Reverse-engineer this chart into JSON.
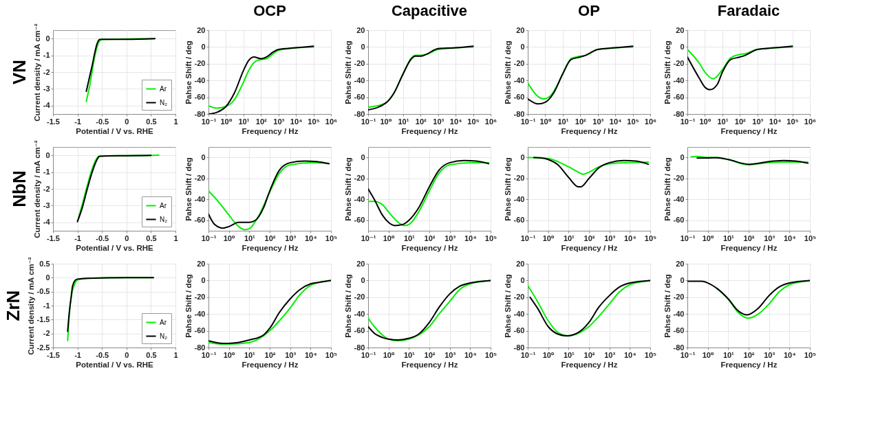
{
  "chart_data": [
    {
      "type": "line",
      "title": "VN",
      "xlabel": "Potential / V vs. RHE",
      "ylabel": "Current density / mA cm⁻²",
      "xlim": [
        -1.5,
        1
      ],
      "xticks": [
        -1.5,
        -1,
        -0.5,
        0,
        0.5,
        1
      ],
      "ylim": [
        -4.5,
        0.5
      ],
      "yticks": [
        -4,
        -3,
        -2,
        -1,
        0
      ],
      "grid": true,
      "legend": "bottom right",
      "series": [
        {
          "name": "Ar",
          "color": "#00ee00",
          "x": [
            -0.82,
            -0.75,
            -0.65,
            -0.6,
            -0.55,
            -0.5,
            0.58
          ],
          "values": [
            -3.75,
            -2.8,
            -1.1,
            -0.5,
            -0.15,
            -0.05,
            0
          ]
        },
        {
          "name": "N₂",
          "color": "#000000",
          "x": [
            -0.82,
            -0.7,
            -0.6,
            -0.55,
            -0.5,
            0,
            0.58
          ],
          "values": [
            -3.15,
            -1.6,
            -0.3,
            -0.05,
            -0.04,
            -0.04,
            0
          ]
        }
      ]
    },
    {
      "type": "line",
      "title": "OCP",
      "xlabel": "Frequency / Hz",
      "ylabel": "Pahse Shift / deg",
      "log": "x",
      "xlim": [
        0.1,
        1000000
      ],
      "xticks": [
        {
          "value": 0.1,
          "label": "10⁻¹"
        },
        {
          "value": 1,
          "label": "10⁰"
        },
        {
          "value": 10,
          "label": "10¹"
        },
        {
          "value": 100,
          "label": "10²"
        },
        {
          "value": 1000,
          "label": "10³"
        },
        {
          "value": 10000,
          "label": "10⁴"
        },
        {
          "value": 100000,
          "label": "10⁵"
        },
        {
          "value": 1000000,
          "label": "10⁶"
        }
      ],
      "ylim": [
        -80,
        20
      ],
      "yticks": [
        -80,
        -60,
        -40,
        -20,
        0,
        20
      ],
      "grid": true,
      "series": [
        {
          "color": "#00ee00",
          "x": [
            0.1,
            0.3,
            1,
            3,
            10,
            20,
            50,
            100,
            200,
            500,
            1000,
            10000,
            100000
          ],
          "values": [
            -70,
            -73,
            -71,
            -63,
            -42,
            -28,
            -17,
            -15,
            -14,
            -8,
            -4,
            -1,
            0
          ]
        },
        {
          "color": "#000000",
          "x": [
            0.1,
            0.3,
            1,
            3,
            10,
            20,
            40,
            100,
            200,
            500,
            1000,
            10000,
            100000
          ],
          "values": [
            -80,
            -78,
            -71,
            -55,
            -28,
            -16,
            -12,
            -14,
            -12,
            -6,
            -3,
            -1,
            1
          ]
        }
      ]
    },
    {
      "type": "line",
      "title": "Capacitive",
      "xlabel": "Frequency / Hz",
      "ylabel": "Pahse Shift / deg",
      "log": "x",
      "xlim": [
        0.1,
        1000000
      ],
      "xticks": [
        {
          "value": 0.1,
          "label": "10⁻¹"
        },
        {
          "value": 1,
          "label": "10⁰"
        },
        {
          "value": 10,
          "label": "10¹"
        },
        {
          "value": 100,
          "label": "10²"
        },
        {
          "value": 1000,
          "label": "10³"
        },
        {
          "value": 10000,
          "label": "10⁴"
        },
        {
          "value": 100000,
          "label": "10⁵"
        },
        {
          "value": 1000000,
          "label": "10⁶"
        }
      ],
      "ylim": [
        -80,
        20
      ],
      "yticks": [
        -80,
        -60,
        -40,
        -20,
        0,
        20
      ],
      "grid": true,
      "series": [
        {
          "color": "#00ee00",
          "x": [
            0.1,
            1,
            3,
            10,
            30,
            50,
            100,
            200,
            1000,
            10000,
            100000
          ],
          "values": [
            -72,
            -67,
            -55,
            -32,
            -13,
            -10,
            -10,
            -9,
            -3,
            -1,
            0
          ]
        },
        {
          "color": "#000000",
          "x": [
            0.1,
            1,
            3,
            10,
            30,
            50,
            100,
            200,
            1000,
            10000,
            100000
          ],
          "values": [
            -75,
            -67,
            -55,
            -32,
            -14,
            -11,
            -11,
            -9,
            -2,
            -1,
            1
          ]
        }
      ]
    },
    {
      "type": "line",
      "title": "OP",
      "xlabel": "Frequency / Hz",
      "ylabel": "Pahse Shift / deg",
      "log": "x",
      "xlim": [
        0.1,
        1000000
      ],
      "xticks": [
        {
          "value": 0.1,
          "label": "10⁻¹"
        },
        {
          "value": 1,
          "label": "10⁰"
        },
        {
          "value": 10,
          "label": "10¹"
        },
        {
          "value": 100,
          "label": "10²"
        },
        {
          "value": 1000,
          "label": "10³"
        },
        {
          "value": 10000,
          "label": "10⁴"
        },
        {
          "value": 100000,
          "label": "10⁵"
        },
        {
          "value": 1000000,
          "label": "10⁶"
        }
      ],
      "ylim": [
        -80,
        20
      ],
      "yticks": [
        -80,
        -60,
        -40,
        -20,
        0,
        20
      ],
      "grid": true,
      "series": [
        {
          "color": "#00ee00",
          "x": [
            0.1,
            0.3,
            0.8,
            2,
            5,
            10,
            30,
            100,
            200,
            1000,
            10000,
            100000
          ],
          "values": [
            -43,
            -57,
            -62,
            -58,
            -45,
            -32,
            -14,
            -11,
            -10,
            -3,
            -1,
            0
          ]
        },
        {
          "color": "#000000",
          "x": [
            0.1,
            0.4,
            1,
            3,
            10,
            30,
            100,
            200,
            1000,
            10000,
            100000
          ],
          "values": [
            -62,
            -68,
            -66,
            -55,
            -32,
            -15,
            -12,
            -10,
            -3,
            -1,
            1
          ]
        }
      ]
    },
    {
      "type": "line",
      "title": "Faradaic",
      "xlabel": "Frequency / Hz",
      "ylabel": "Pahse Shift / deg",
      "log": "x",
      "xlim": [
        0.1,
        1000000
      ],
      "xticks": [
        {
          "value": 0.1,
          "label": "10⁻¹"
        },
        {
          "value": 1,
          "label": "10⁰"
        },
        {
          "value": 10,
          "label": "10¹"
        },
        {
          "value": 100,
          "label": "10²"
        },
        {
          "value": 1000,
          "label": "10³"
        },
        {
          "value": 10000,
          "label": "10⁴"
        },
        {
          "value": 100000,
          "label": "10⁵"
        },
        {
          "value": 1000000,
          "label": "10⁶"
        }
      ],
      "ylim": [
        -80,
        20
      ],
      "yticks": [
        -80,
        -60,
        -40,
        -20,
        0,
        20
      ],
      "grid": true,
      "series": [
        {
          "color": "#00ee00",
          "x": [
            0.1,
            0.5,
            1,
            3,
            10,
            30,
            100,
            200,
            1000,
            10000,
            100000
          ],
          "values": [
            -3,
            -20,
            -30,
            -38,
            -27,
            -13,
            -9,
            -8,
            -3,
            -1,
            0
          ]
        },
        {
          "color": "#000000",
          "x": [
            0.1,
            0.5,
            1,
            2,
            5,
            10,
            30,
            100,
            200,
            1000,
            10000,
            100000
          ],
          "values": [
            -12,
            -38,
            -48,
            -51,
            -45,
            -30,
            -15,
            -12,
            -10,
            -3,
            -1,
            1
          ]
        }
      ]
    },
    {
      "type": "line",
      "title": "NbN",
      "xlabel": "Potential / V vs. RHE",
      "ylabel": "Current density / mA cm⁻²",
      "xlim": [
        -1.5,
        1
      ],
      "xticks": [
        -1.5,
        -1,
        -0.5,
        0,
        0.5,
        1
      ],
      "ylim": [
        -4.5,
        0.5
      ],
      "yticks": [
        -4,
        -3,
        -2,
        -1,
        0
      ],
      "grid": true,
      "legend": "bottom right",
      "series": [
        {
          "name": "Ar",
          "color": "#00ee00",
          "x": [
            -1,
            -0.9,
            -0.8,
            -0.7,
            -0.6,
            -0.55,
            0,
            0.5,
            0.66
          ],
          "values": [
            -3.95,
            -2.9,
            -1.8,
            -0.8,
            -0.15,
            -0.05,
            -0.02,
            0,
            0.02
          ]
        },
        {
          "name": "N₂",
          "color": "#000000",
          "x": [
            -1,
            -0.9,
            -0.8,
            -0.7,
            -0.6,
            -0.55,
            0,
            0.5
          ],
          "values": [
            -3.95,
            -3.1,
            -2,
            -1,
            -0.25,
            -0.05,
            -0.02,
            0
          ]
        }
      ]
    },
    {
      "type": "line",
      "xlabel": "Frequency / Hz",
      "ylabel": "Pahse Shift / deg",
      "log": "x",
      "xlim": [
        0.1,
        100000
      ],
      "xticks": [
        {
          "value": 0.1,
          "label": "10⁻¹"
        },
        {
          "value": 1,
          "label": "10⁰"
        },
        {
          "value": 10,
          "label": "10¹"
        },
        {
          "value": 100,
          "label": "10²"
        },
        {
          "value": 1000,
          "label": "10³"
        },
        {
          "value": 10000,
          "label": "10⁴"
        },
        {
          "value": 100000,
          "label": "10⁵"
        }
      ],
      "ylim": [
        -70,
        10
      ],
      "yticks": [
        -60,
        -40,
        -20,
        0
      ],
      "grid": true,
      "series": [
        {
          "color": "#00ee00",
          "x": [
            0.1,
            0.3,
            1,
            3,
            6,
            10,
            30,
            100,
            300,
            1000,
            10000,
            80000
          ],
          "values": [
            -32,
            -42,
            -55,
            -66,
            -69,
            -68,
            -55,
            -33,
            -15,
            -7,
            -5,
            -5.5
          ]
        },
        {
          "color": "#000000",
          "x": [
            0.1,
            0.2,
            0.5,
            1,
            3,
            10,
            20,
            50,
            100,
            300,
            1000,
            5000,
            20000,
            80000
          ],
          "values": [
            -54,
            -64,
            -67.5,
            -66,
            -62,
            -62,
            -60,
            -48,
            -32,
            -12,
            -5,
            -3.5,
            -4,
            -6
          ]
        }
      ]
    },
    {
      "type": "line",
      "xlabel": "Frequency / Hz",
      "ylabel": "Pahse Shift / deg",
      "log": "x",
      "xlim": [
        0.1,
        100000
      ],
      "xticks": [
        {
          "value": 0.1,
          "label": "10⁻¹"
        },
        {
          "value": 1,
          "label": "10⁰"
        },
        {
          "value": 10,
          "label": "10¹"
        },
        {
          "value": 100,
          "label": "10²"
        },
        {
          "value": 1000,
          "label": "10³"
        },
        {
          "value": 10000,
          "label": "10⁴"
        },
        {
          "value": 100000,
          "label": "10⁵"
        }
      ],
      "ylim": [
        -70,
        10
      ],
      "yticks": [
        -60,
        -40,
        -20,
        0
      ],
      "grid": true,
      "series": [
        {
          "color": "#00ee00",
          "x": [
            0.1,
            0.2,
            0.5,
            1,
            3,
            6,
            10,
            30,
            100,
            300,
            1000,
            10000,
            80000
          ],
          "values": [
            -42,
            -42,
            -45,
            -52,
            -62,
            -65,
            -64,
            -52,
            -32,
            -15,
            -7,
            -5,
            -5
          ]
        },
        {
          "color": "#000000",
          "x": [
            0.1,
            0.2,
            0.5,
            1,
            2,
            5,
            10,
            30,
            100,
            300,
            1000,
            5000,
            20000,
            80000
          ],
          "values": [
            -30,
            -40,
            -55,
            -62,
            -65,
            -64,
            -60,
            -48,
            -28,
            -12,
            -5,
            -3,
            -3.5,
            -6
          ]
        }
      ]
    },
    {
      "type": "line",
      "xlabel": "Frequency / Hz",
      "ylabel": "Pahse Shift / deg",
      "log": "x",
      "xlim": [
        0.1,
        100000
      ],
      "xticks": [
        {
          "value": 0.1,
          "label": "10⁻¹"
        },
        {
          "value": 1,
          "label": "10⁰"
        },
        {
          "value": 10,
          "label": "10¹"
        },
        {
          "value": 100,
          "label": "10²"
        },
        {
          "value": 1000,
          "label": "10³"
        },
        {
          "value": 10000,
          "label": "10⁴"
        },
        {
          "value": 100000,
          "label": "10⁵"
        }
      ],
      "ylim": [
        -70,
        10
      ],
      "yticks": [
        -60,
        -40,
        -20,
        0
      ],
      "grid": true,
      "series": [
        {
          "color": "#00ee00",
          "x": [
            0.1,
            0.3,
            1,
            3,
            10,
            30,
            50,
            100,
            300,
            1000,
            10000,
            80000
          ],
          "values": [
            0,
            -0.5,
            -1,
            -4,
            -9,
            -14,
            -16,
            -14,
            -9,
            -6,
            -5,
            -4.5
          ]
        },
        {
          "color": "#000000",
          "x": [
            0.2,
            0.5,
            1,
            3,
            10,
            30,
            40,
            100,
            300,
            1000,
            5000,
            20000,
            80000
          ],
          "values": [
            0,
            -0.5,
            -2,
            -7,
            -19,
            -28,
            -28,
            -20,
            -10,
            -5,
            -3,
            -3.5,
            -6.5
          ]
        }
      ]
    },
    {
      "type": "line",
      "xlabel": "Frequency / Hz",
      "ylabel": "Pahse Shift / deg",
      "log": "x",
      "xlim": [
        0.1,
        100000
      ],
      "xticks": [
        {
          "value": 0.1,
          "label": "10⁻¹"
        },
        {
          "value": 1,
          "label": "10⁰"
        },
        {
          "value": 10,
          "label": "10¹"
        },
        {
          "value": 100,
          "label": "10²"
        },
        {
          "value": 1000,
          "label": "10³"
        },
        {
          "value": 10000,
          "label": "10⁴"
        },
        {
          "value": 100000,
          "label": "10⁵"
        }
      ],
      "ylim": [
        -70,
        10
      ],
      "yticks": [
        -60,
        -40,
        -20,
        0
      ],
      "grid": true,
      "series": [
        {
          "color": "#00ee00",
          "x": [
            0.15,
            0.3,
            1,
            3,
            10,
            100,
            300,
            1000,
            10000,
            80000
          ],
          "values": [
            0.5,
            1,
            0,
            0,
            -2,
            -7,
            -6,
            -5,
            -4.5,
            -4.5
          ]
        },
        {
          "color": "#000000",
          "x": [
            0.3,
            1,
            3,
            10,
            100,
            300,
            1000,
            5000,
            20000,
            80000
          ],
          "values": [
            -0.5,
            -0.5,
            -0.3,
            -2,
            -6.5,
            -5.5,
            -4,
            -3,
            -3.5,
            -5.5
          ]
        }
      ]
    },
    {
      "type": "line",
      "title": "ZrN",
      "xlabel": "Potential / V vs. RHE",
      "ylabel": "Current density / mA cm⁻²",
      "xlim": [
        -1.5,
        1
      ],
      "xticks": [
        -1.5,
        -1,
        -0.5,
        0,
        0.5,
        1
      ],
      "ylim": [
        -2.5,
        0.5
      ],
      "yticks": [
        -2.5,
        -2,
        -1.5,
        -1,
        -0.5,
        0,
        0.5
      ],
      "grid": true,
      "legend": "bottom right",
      "series": [
        {
          "name": "Ar",
          "color": "#00ee00",
          "x": [
            -1.2,
            -1.18,
            -1.15,
            -1.1,
            -1.05,
            -1,
            -0.8,
            0,
            0.55
          ],
          "values": [
            -2.25,
            -1.6,
            -1,
            -0.45,
            -0.2,
            -0.08,
            -0.02,
            0,
            0
          ]
        },
        {
          "name": "N₂",
          "color": "#000000",
          "x": [
            -1.2,
            -1.17,
            -1.13,
            -1.1,
            -1.05,
            -1,
            -0.8,
            0,
            0.55
          ],
          "values": [
            -1.92,
            -1.3,
            -0.7,
            -0.3,
            -0.1,
            -0.05,
            -0.02,
            0,
            0
          ]
        }
      ]
    },
    {
      "type": "line",
      "xlabel": "Frequency / Hz",
      "ylabel": "Pahse Shift / deg",
      "log": "x",
      "xlim": [
        0.1,
        100000
      ],
      "xticks": [
        {
          "value": 0.1,
          "label": "10⁻¹"
        },
        {
          "value": 1,
          "label": "10⁰"
        },
        {
          "value": 10,
          "label": "10¹"
        },
        {
          "value": 100,
          "label": "10²"
        },
        {
          "value": 1000,
          "label": "10³"
        },
        {
          "value": 10000,
          "label": "10⁴"
        },
        {
          "value": 100000,
          "label": "10⁵"
        }
      ],
      "ylim": [
        -80,
        20
      ],
      "yticks": [
        -80,
        -60,
        -40,
        -20,
        0,
        20
      ],
      "grid": true,
      "series": [
        {
          "color": "#00ee00",
          "x": [
            0.1,
            0.5,
            1,
            10,
            50,
            100,
            300,
            1000,
            3000,
            10000,
            30000,
            100000
          ],
          "values": [
            -74,
            -76,
            -76,
            -74,
            -66,
            -60,
            -48,
            -33,
            -17,
            -6,
            -2,
            0
          ]
        },
        {
          "color": "#000000",
          "x": [
            0.1,
            0.5,
            1,
            10,
            50,
            100,
            300,
            1000,
            3000,
            10000,
            30000,
            100000
          ],
          "values": [
            -72,
            -75,
            -75,
            -71,
            -65,
            -57,
            -38,
            -22,
            -11,
            -4,
            -2,
            0
          ]
        }
      ]
    },
    {
      "type": "line",
      "xlabel": "Frequency / Hz",
      "ylabel": "Pahse Shift / deg",
      "log": "x",
      "xlim": [
        0.1,
        100000
      ],
      "xticks": [
        {
          "value": 0.1,
          "label": "10⁻¹"
        },
        {
          "value": 1,
          "label": "10⁰"
        },
        {
          "value": 10,
          "label": "10¹"
        },
        {
          "value": 100,
          "label": "10²"
        },
        {
          "value": 1000,
          "label": "10³"
        },
        {
          "value": 10000,
          "label": "10⁴"
        },
        {
          "value": 100000,
          "label": "10⁵"
        }
      ],
      "ylim": [
        -80,
        20
      ],
      "yticks": [
        -80,
        -60,
        -40,
        -20,
        0,
        20
      ],
      "grid": true,
      "series": [
        {
          "color": "#00ee00",
          "x": [
            0.1,
            0.2,
            0.5,
            1,
            3,
            10,
            30,
            100,
            300,
            1000,
            3000,
            10000,
            100000
          ],
          "values": [
            -45,
            -55,
            -65,
            -70,
            -72,
            -70,
            -65,
            -55,
            -40,
            -25,
            -11,
            -4,
            0
          ]
        },
        {
          "color": "#000000",
          "x": [
            0.1,
            0.2,
            0.5,
            1,
            3,
            10,
            30,
            100,
            300,
            1000,
            3000,
            10000,
            100000
          ],
          "values": [
            -55,
            -63,
            -68,
            -70,
            -71,
            -69,
            -64,
            -50,
            -32,
            -16,
            -7,
            -3,
            0
          ]
        }
      ]
    },
    {
      "type": "line",
      "xlabel": "Frequency / Hz",
      "ylabel": "Pahse Shift / deg",
      "log": "x",
      "xlim": [
        0.1,
        100000
      ],
      "xticks": [
        {
          "value": 0.1,
          "label": "10⁻¹"
        },
        {
          "value": 1,
          "label": "10⁰"
        },
        {
          "value": 10,
          "label": "10¹"
        },
        {
          "value": 100,
          "label": "10²"
        },
        {
          "value": 1000,
          "label": "10³"
        },
        {
          "value": 10000,
          "label": "10⁴"
        },
        {
          "value": 100000,
          "label": "10⁵"
        }
      ],
      "ylim": [
        -80,
        20
      ],
      "yticks": [
        -80,
        -60,
        -40,
        -20,
        0,
        20
      ],
      "grid": true,
      "series": [
        {
          "color": "#00ee00",
          "x": [
            0.1,
            0.3,
            1,
            3,
            10,
            30,
            100,
            300,
            1000,
            3000,
            10000,
            30000,
            100000
          ],
          "values": [
            -6,
            -25,
            -48,
            -62,
            -66,
            -63,
            -55,
            -43,
            -28,
            -14,
            -5,
            -2,
            0
          ]
        },
        {
          "color": "#000000",
          "x": [
            0.13,
            0.3,
            1,
            3,
            8,
            30,
            100,
            300,
            1000,
            3000,
            10000,
            100000
          ],
          "values": [
            -20,
            -33,
            -55,
            -64,
            -66,
            -62,
            -50,
            -32,
            -18,
            -8,
            -3,
            0
          ]
        }
      ]
    },
    {
      "type": "line",
      "xlabel": "Frequency / Hz",
      "ylabel": "Pahse Shift / deg",
      "log": "x",
      "xlim": [
        0.1,
        100000
      ],
      "xticks": [
        {
          "value": 0.1,
          "label": "10⁻¹"
        },
        {
          "value": 1,
          "label": "10⁰"
        },
        {
          "value": 10,
          "label": "10¹"
        },
        {
          "value": 100,
          "label": "10²"
        },
        {
          "value": 1000,
          "label": "10³"
        },
        {
          "value": 10000,
          "label": "10⁴"
        },
        {
          "value": 100000,
          "label": "10⁵"
        }
      ],
      "ylim": [
        -80,
        20
      ],
      "yticks": [
        -80,
        -60,
        -40,
        -20,
        0,
        20
      ],
      "grid": true,
      "series": [
        {
          "color": "#00ee00",
          "x": [
            3,
            10,
            30,
            100,
            300,
            1000,
            3000,
            10000,
            30000,
            100000
          ],
          "values": [
            -10,
            -22,
            -38,
            -45,
            -40,
            -28,
            -14,
            -5,
            -2,
            0
          ]
        },
        {
          "color": "#000000",
          "x": [
            0.1,
            0.5,
            1,
            3,
            10,
            30,
            80,
            300,
            1000,
            3000,
            10000,
            100000
          ],
          "values": [
            -1,
            -1,
            -3,
            -10,
            -22,
            -36,
            -41,
            -33,
            -18,
            -8,
            -3,
            0
          ]
        }
      ]
    }
  ]
}
